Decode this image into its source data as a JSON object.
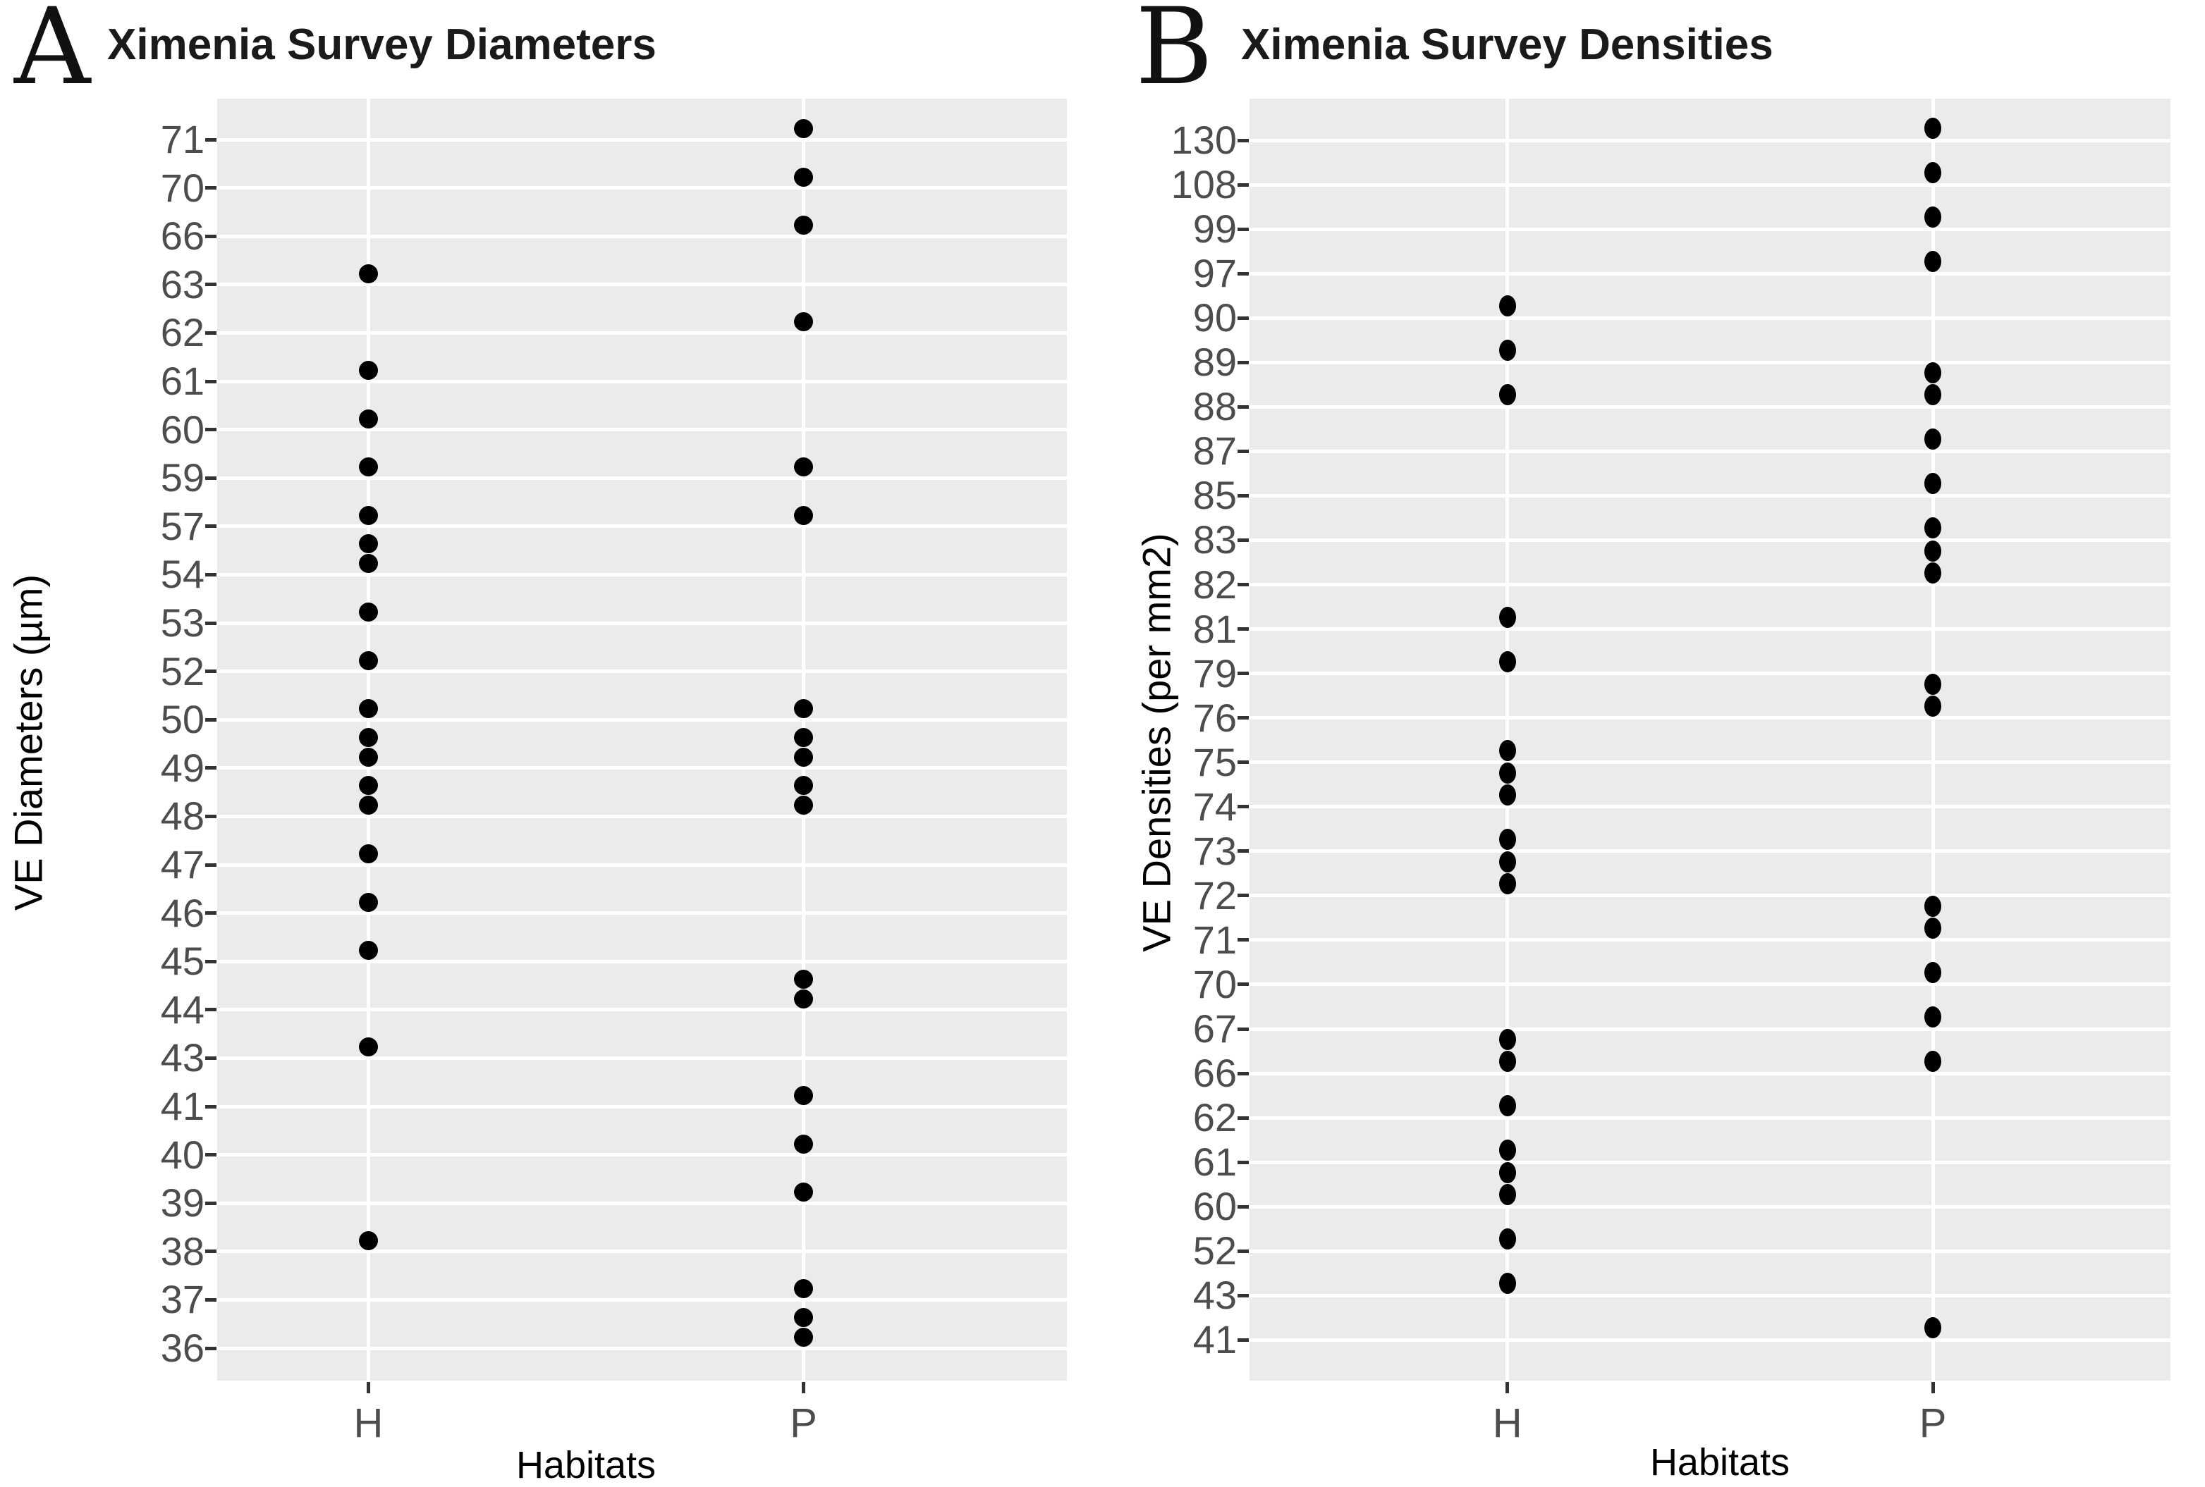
{
  "figure_caption_letters": [
    "A",
    "B"
  ],
  "colors": {
    "panel_background": "#ebebeb",
    "gridline": "#ffffff",
    "point": "#000000",
    "tick_label_text": "#4d4d4d",
    "title_text": "#1a1a1a",
    "page_background": "#ffffff"
  },
  "panels": [
    {
      "letter": "A",
      "title": "Ximenia Survey Diameters",
      "x_axis_label": "Habitats",
      "y_axis_label": "VE Diameters (µm)"
    },
    {
      "letter": "B",
      "title": "Ximenia Survey Densities",
      "x_axis_label": "Habitats",
      "y_axis_label": "VE Densities (per mm2)"
    }
  ],
  "chart_data": [
    {
      "type": "scatter",
      "subtype": "strip-plot-discrete-y",
      "title": "Ximenia Survey Diameters",
      "xlabel": "Habitats",
      "ylabel": "VE Diameters (µm)",
      "x_categories": [
        "H",
        "P"
      ],
      "y_scale": "discrete",
      "y_ticks": [
        "71",
        "70",
        "66",
        "63",
        "62",
        "61",
        "60",
        "59",
        "57",
        "54",
        "53",
        "52",
        "50",
        "49",
        "48",
        "47",
        "46",
        "45",
        "44",
        "43",
        "41",
        "40",
        "39",
        "38",
        "37",
        "36"
      ],
      "series": [
        {
          "name": "H",
          "values": [
            63,
            61,
            60,
            59,
            57,
            54,
            54,
            53,
            52,
            50,
            49,
            49,
            48,
            48,
            47,
            46,
            45,
            43,
            38
          ]
        },
        {
          "name": "P",
          "values": [
            71,
            70,
            66,
            62,
            59,
            57,
            50,
            49,
            49,
            48,
            48,
            44,
            44,
            41,
            40,
            39,
            37,
            36,
            36
          ]
        }
      ],
      "legend": "none",
      "grid": "white major gridlines on gray panel"
    },
    {
      "type": "scatter",
      "subtype": "strip-plot-discrete-y",
      "title": "Ximenia Survey Densities",
      "xlabel": "Habitats",
      "ylabel": "VE Densities (per mm2)",
      "x_categories": [
        "H",
        "P"
      ],
      "y_scale": "discrete",
      "y_ticks": [
        "130",
        "108",
        "99",
        "97",
        "90",
        "89",
        "88",
        "87",
        "85",
        "83",
        "82",
        "81",
        "79",
        "76",
        "75",
        "74",
        "73",
        "72",
        "71",
        "70",
        "67",
        "66",
        "62",
        "61",
        "60",
        "52",
        "43",
        "41"
      ],
      "series": [
        {
          "name": "H",
          "values": [
            90,
            89,
            88,
            81,
            79,
            75,
            74,
            74,
            73,
            72,
            72,
            66,
            66,
            62,
            61,
            60,
            60,
            52,
            43
          ]
        },
        {
          "name": "P",
          "values": [
            130,
            108,
            99,
            97,
            88,
            88,
            87,
            85,
            83,
            82,
            82,
            76,
            76,
            71,
            71,
            70,
            67,
            66,
            41
          ]
        }
      ],
      "legend": "none",
      "grid": "white major gridlines on gray panel"
    }
  ]
}
